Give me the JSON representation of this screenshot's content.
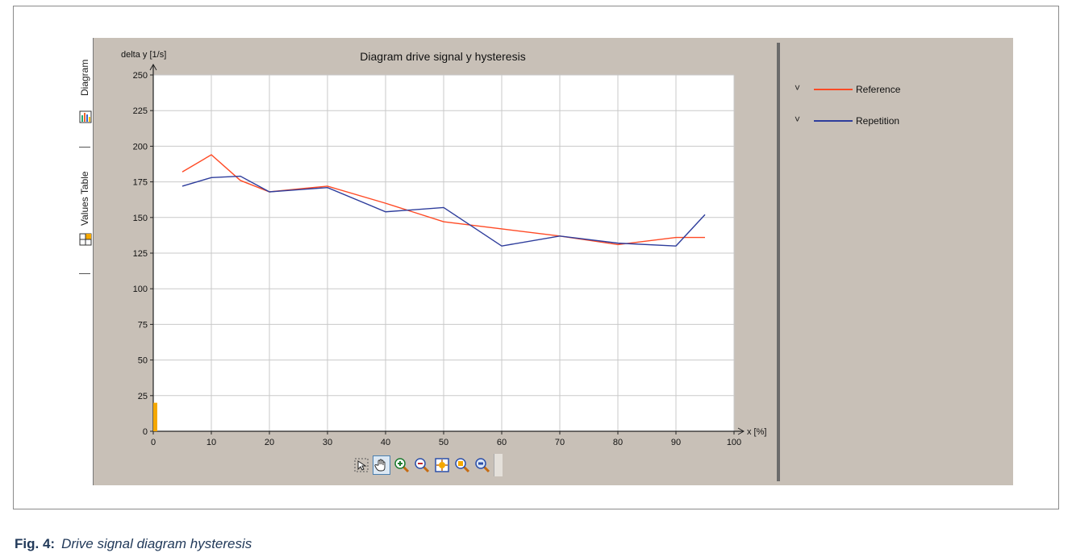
{
  "tabs": [
    {
      "label": "Diagram",
      "icon": "diagram-icon"
    },
    {
      "label": "Values Table",
      "icon": "table-icon"
    }
  ],
  "legend": [
    {
      "name": "Reference",
      "color": "#ff4a25",
      "chevron": "˅"
    },
    {
      "name": "Repetition",
      "color": "#2e3d9c",
      "chevron": "˅"
    }
  ],
  "toolbar": [
    {
      "name": "select-tool",
      "icon": "pointer-icon",
      "active": false
    },
    {
      "name": "pan-tool",
      "icon": "hand-icon",
      "active": true
    },
    {
      "name": "zoom-in-tool",
      "icon": "zoom-in-icon",
      "active": false
    },
    {
      "name": "zoom-out-tool",
      "icon": "zoom-out-icon",
      "active": false
    },
    {
      "name": "zoom-fit-tool",
      "icon": "zoom-fit-icon",
      "active": false
    },
    {
      "name": "zoom-area-tool",
      "icon": "zoom-area-icon",
      "active": false
    },
    {
      "name": "zoom-reset-tool",
      "icon": "zoom-1to1-icon",
      "active": false
    }
  ],
  "caption": {
    "label": "Fig. 4:",
    "text": "Drive signal diagram hysteresis"
  },
  "chart_data": {
    "type": "line",
    "title": "Diagram drive signal y hysteresis",
    "xlabel": "x [%]",
    "ylabel": "delta y [1/s]",
    "xlim": [
      0,
      100
    ],
    "ylim": [
      0,
      250
    ],
    "xticks": [
      0,
      10,
      20,
      30,
      40,
      50,
      60,
      70,
      80,
      90,
      100
    ],
    "yticks": [
      0,
      25,
      50,
      75,
      100,
      125,
      150,
      175,
      200,
      225,
      250
    ],
    "grid": true,
    "legend_position": "right panel",
    "series": [
      {
        "name": "Reference",
        "color": "#ff4a25",
        "x": [
          5,
          10,
          15,
          20,
          30,
          40,
          50,
          60,
          70,
          80,
          90,
          95
        ],
        "y": [
          182,
          194,
          176,
          168,
          172,
          160,
          147,
          142,
          137,
          131,
          136,
          136
        ]
      },
      {
        "name": "Repetition",
        "color": "#2e3d9c",
        "x": [
          5,
          10,
          15,
          20,
          30,
          40,
          50,
          60,
          70,
          80,
          90,
          95
        ],
        "y": [
          172,
          178,
          179,
          168,
          171,
          154,
          157,
          130,
          137,
          132,
          130,
          152
        ]
      }
    ],
    "marker": {
      "x": 0,
      "y": 20,
      "color": "#f5a800"
    }
  }
}
